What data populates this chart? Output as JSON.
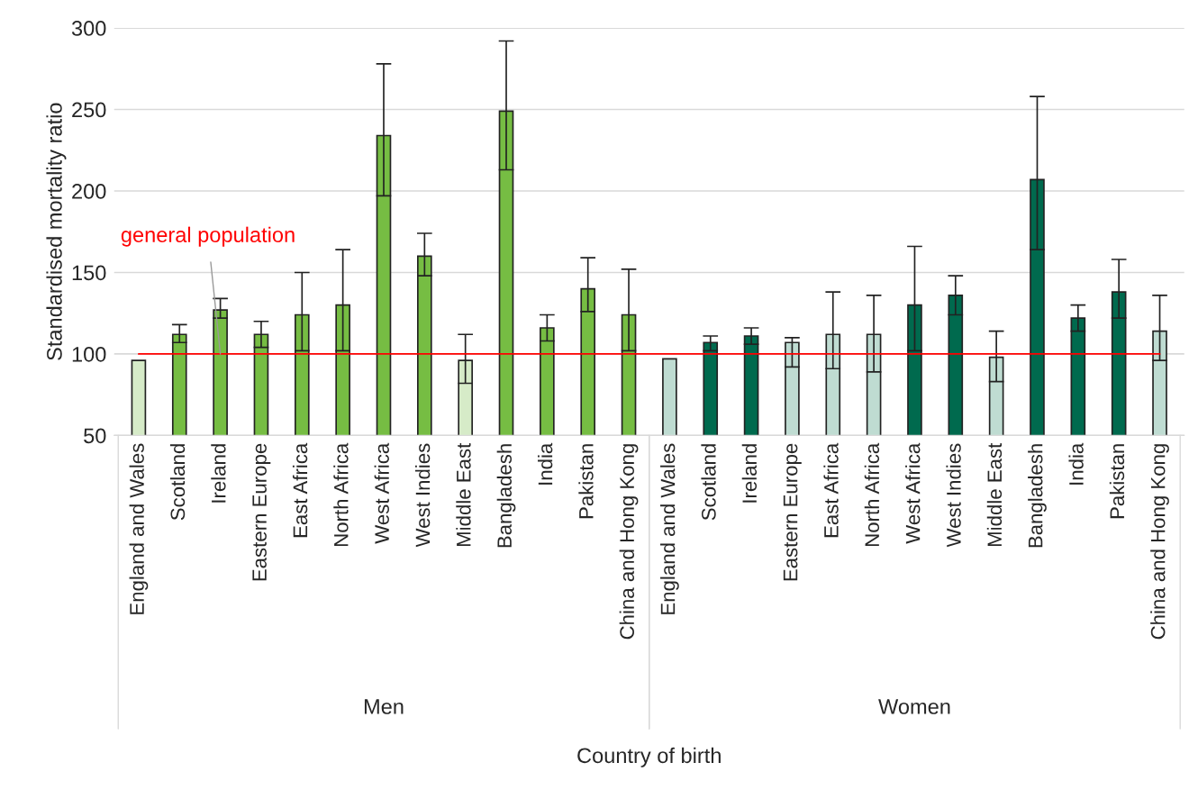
{
  "chart_data": {
    "type": "bar",
    "ylabel": "Standardised mortality ratio",
    "categories": [
      "England and Wales",
      "Scotland",
      "Ireland",
      "Eastern Europe",
      "East Africa",
      "North Africa",
      "West Africa",
      "West Indies",
      "Middle East",
      "Bangladesh",
      "India",
      "Pakistan",
      "China and Hong Kong",
      "England and Wales",
      "Scotland",
      "Ireland",
      "Eastern Europe",
      "East Africa",
      "North Africa",
      "West Africa",
      "West Indies",
      "Middle East",
      "Bangladesh",
      "India",
      "Pakistan",
      "China and Hong Kong"
    ],
    "values": [
      96,
      112,
      127,
      112,
      124,
      130,
      234,
      160,
      96,
      249,
      116,
      140,
      124,
      97,
      107,
      111,
      107,
      112,
      112,
      130,
      136,
      98,
      207,
      122,
      138,
      114
    ],
    "errors": [
      null,
      [
        107,
        118
      ],
      [
        122,
        134
      ],
      [
        104,
        120
      ],
      [
        102,
        150
      ],
      [
        102,
        164
      ],
      [
        197,
        278
      ],
      [
        148,
        174
      ],
      [
        82,
        112
      ],
      [
        213,
        292
      ],
      [
        108,
        124
      ],
      [
        126,
        159
      ],
      [
        102,
        152
      ],
      null,
      [
        102,
        111
      ],
      [
        106,
        116
      ],
      [
        92,
        110
      ],
      [
        91,
        138
      ],
      [
        89,
        136
      ],
      [
        102,
        166
      ],
      [
        124,
        148
      ],
      [
        83,
        114
      ],
      [
        164,
        258
      ],
      [
        114,
        130
      ],
      [
        122,
        158
      ],
      [
        96,
        136
      ]
    ],
    "colors": [
      "#d6ebc8",
      "#76bd43",
      "#76bd43",
      "#76bd43",
      "#76bd43",
      "#76bd43",
      "#76bd43",
      "#76bd43",
      "#d6ebc8",
      "#76bd43",
      "#76bd43",
      "#76bd43",
      "#76bd43",
      "#bfdcd2",
      "#006a4e",
      "#006a4e",
      "#bfdcd2",
      "#bfdcd2",
      "#bfdcd2",
      "#006a4e",
      "#006a4e",
      "#bfdcd2",
      "#006a4e",
      "#006a4e",
      "#006a4e",
      "#bfdcd2"
    ],
    "ylim": [
      50,
      300
    ],
    "yticks": [
      50,
      100,
      150,
      200,
      250,
      300
    ],
    "grid": "y",
    "ref_lines": [
      {
        "axis": "y",
        "value": 100,
        "color": "#ff0000"
      }
    ],
    "annotations": [
      {
        "text": "general population",
        "x": "Ireland",
        "y": 100
      },
      "Men",
      "Women",
      {
        "text": "Country of birth"
      }
    ]
  }
}
